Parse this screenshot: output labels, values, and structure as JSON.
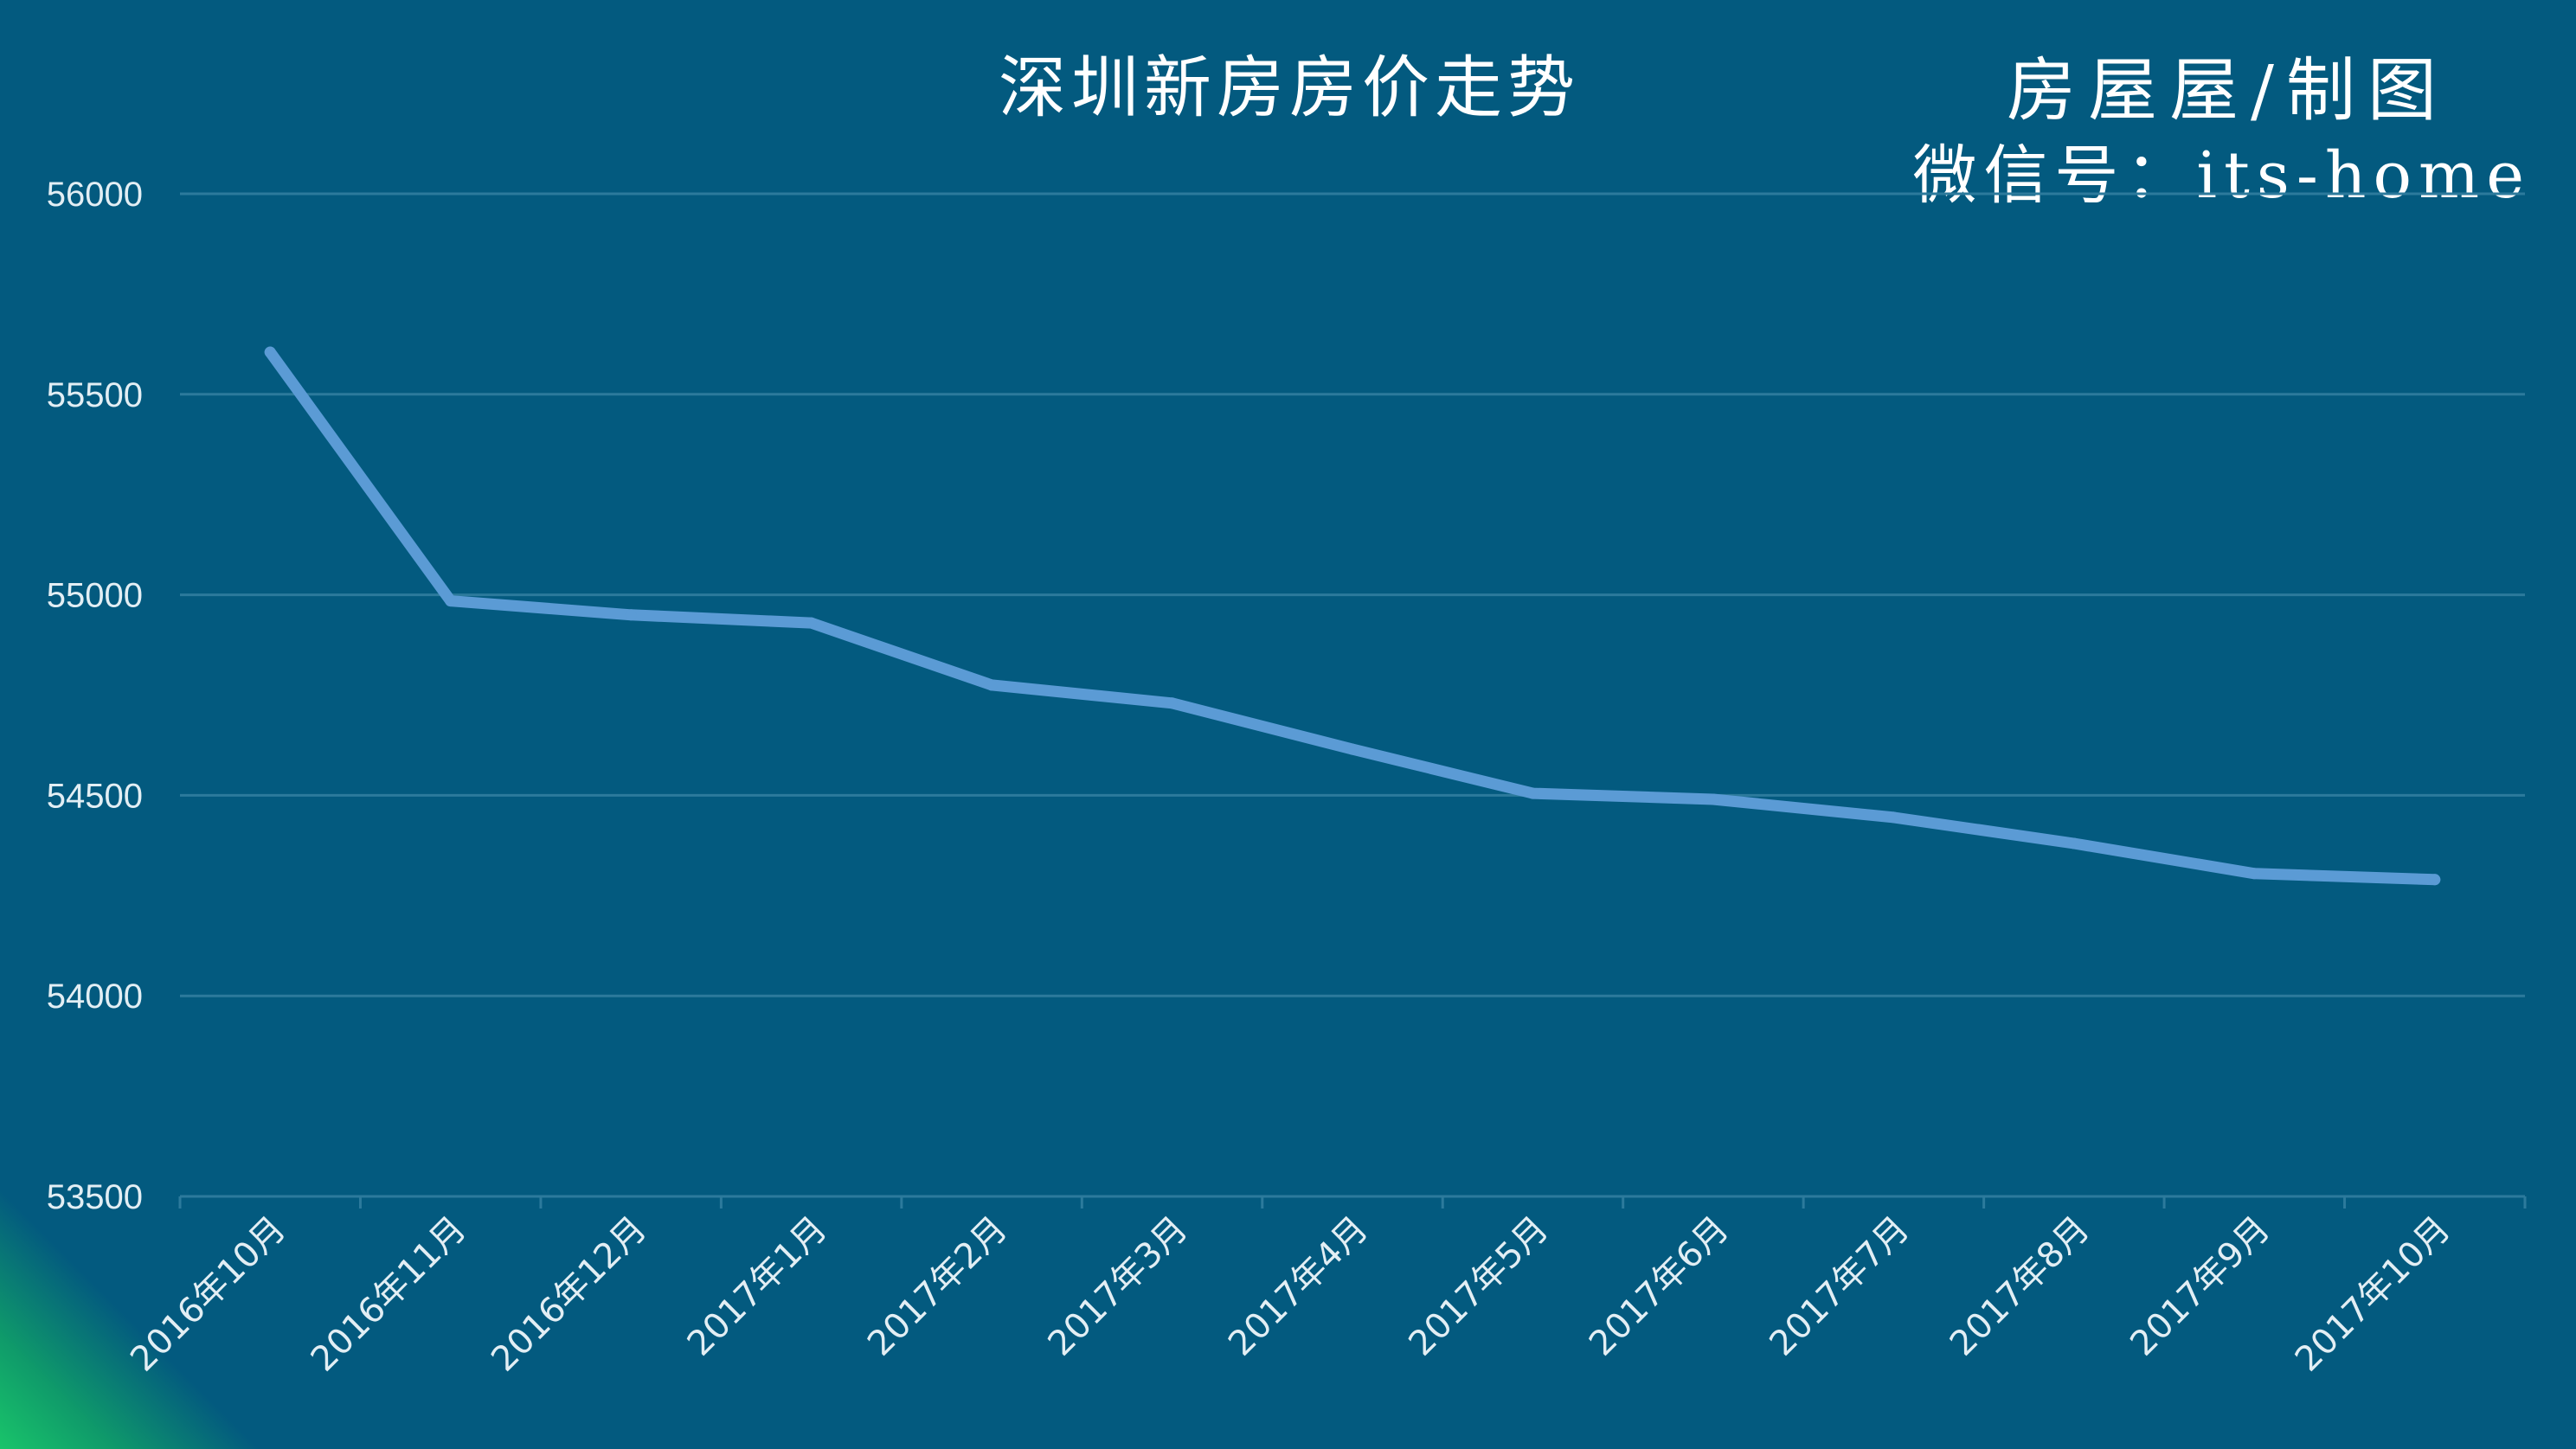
{
  "chart_data": {
    "type": "line",
    "title": "深圳新房房价走势",
    "credit_line1": "房屋屋/制图",
    "credit_line2": "微信号：its-home",
    "categories": [
      "2016年10月",
      "2016年11月",
      "2016年12月",
      "2017年1月",
      "2017年2月",
      "2017年3月",
      "2017年4月",
      "2017年5月",
      "2017年6月",
      "2017年7月",
      "2017年8月",
      "2017年9月",
      "2017年10月"
    ],
    "series": [
      {
        "values": [
          55605,
          54985,
          54950,
          54930,
          54775,
          54730,
          54615,
          54505,
          54490,
          54445,
          54380,
          54305,
          54290
        ]
      }
    ],
    "ylim": [
      53500,
      56000
    ],
    "yticks": [
      53500,
      54000,
      54500,
      55000,
      55500,
      56000
    ],
    "xlabel": "",
    "ylabel": "",
    "grid": true,
    "colors": {
      "background": "#035a7f",
      "line": "#5b9bd5",
      "grid": "#2c7a9c",
      "text": "#ffffff",
      "tick_text": "#e2eef4",
      "corner": "#19c46a"
    }
  }
}
